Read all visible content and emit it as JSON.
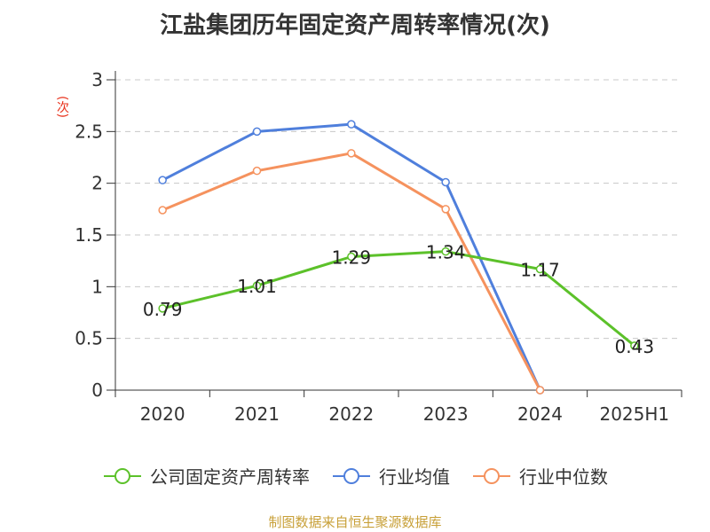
{
  "title": "江盐集团历年固定资产周转率情况(次)",
  "source": "制图数据来自恒生聚源数据库",
  "chart_data": {
    "type": "line",
    "y_unit_label": "(次)",
    "categories": [
      "2020",
      "2021",
      "2022",
      "2023",
      "2024",
      "2025H1"
    ],
    "ylim": [
      0,
      3
    ],
    "yticks": [
      "0",
      "0.5",
      "1",
      "1.5",
      "2",
      "2.5",
      "3"
    ],
    "grid": true,
    "legend_position": "bottom",
    "series": [
      {
        "name": "公司固定资产周转率",
        "color": "#5cc12a",
        "values": [
          0.79,
          1.01,
          1.29,
          1.34,
          1.17,
          0.43
        ],
        "labels": [
          "0.79",
          "1.01",
          "1.29",
          "1.34",
          "1.17",
          "0.43"
        ]
      },
      {
        "name": "行业均值",
        "color": "#4f7fdc",
        "values": [
          2.03,
          2.5,
          2.57,
          2.01,
          0.0,
          null
        ]
      },
      {
        "name": "行业中位数",
        "color": "#f5925e",
        "values": [
          1.74,
          2.12,
          2.29,
          1.75,
          0.0,
          null
        ]
      }
    ]
  }
}
